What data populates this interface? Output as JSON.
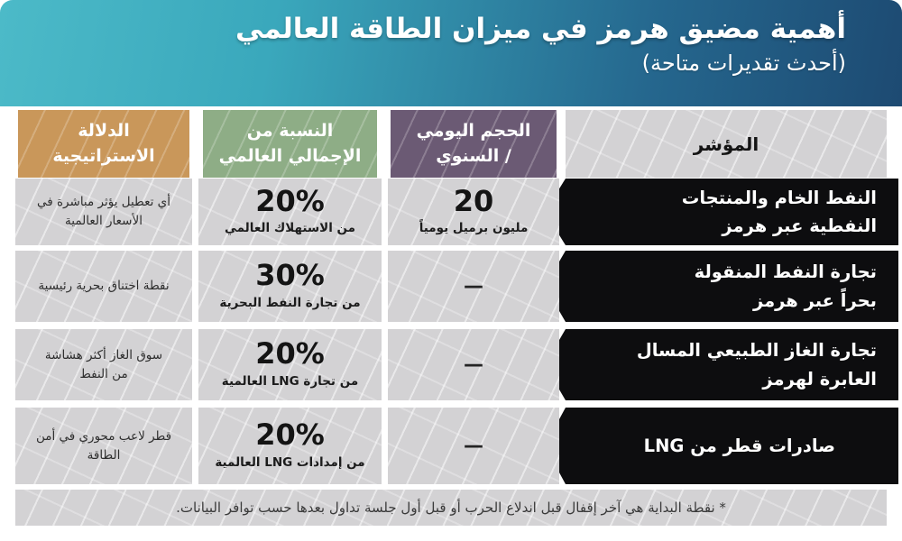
{
  "header": {
    "title": "أهمية مضيق هرمز في ميزان الطاقة العالمي",
    "subtitle": "(أحدث تقديرات متاحة)"
  },
  "colors": {
    "banner_teal": "#4cbac8",
    "banner_navy": "#1d4a72",
    "strategic_header": "#c9975a",
    "share_header": "#8ead86",
    "volume_header": "#6b5a74",
    "indicator_arrow": "#0d0d0f",
    "cell_gray": "#d3d2d4"
  },
  "table": {
    "columns": {
      "indicator": {
        "label": "المؤشر"
      },
      "volume": {
        "label": "الحجم اليومي\n/ السنوي"
      },
      "share": {
        "label": "النسبة من\nالإجمالي العالمي"
      },
      "strategic": {
        "label": "الدلالة\nالاستراتيجية"
      }
    },
    "rows": [
      {
        "indicator": "النفط الخام والمنتجات\nالنفطية  عبر هرمز",
        "volume_value": "20",
        "volume_unit": "مليون برميل يومياً",
        "share_value": "20%",
        "share_unit": "من الاستهلاك العالمي",
        "strategic": "أي تعطيل يؤثر مباشرة في\nالأسعار العالمية"
      },
      {
        "indicator": "تجارة النفط المنقولة\nبحراً عبر هرمز",
        "volume_value": "—",
        "volume_unit": "",
        "share_value": "30%",
        "share_unit": "من تجارة النفط البحرية",
        "strategic": "نقطة اختناق بحرية رئيسية"
      },
      {
        "indicator": "تجارة الغاز الطبيعي المسال\nالعابرة لهرمز",
        "volume_value": "—",
        "volume_unit": "",
        "share_value": "20%",
        "share_unit": "من تجارة LNG العالمية",
        "strategic": "سوق الغاز أكثر هشاشة\nمن النفط"
      },
      {
        "indicator": "صادرات قطر من LNG",
        "volume_value": "—",
        "volume_unit": "",
        "share_value": "20%",
        "share_unit": "من إمدادات LNG العالمية",
        "strategic": "قطر لاعب محوري في أمن\nالطاقة"
      }
    ]
  },
  "footnote": "* نقطة البداية هي آخر إقفال قبل اندلاع الحرب أو قبل أول جلسة تداول بعدها حسب توافر البيانات.",
  "chart_data": {
    "type": "table",
    "title": "أهمية مضيق هرمز في ميزان الطاقة العالمي",
    "subtitle": "(أحدث تقديرات متاحة)",
    "columns": [
      "المؤشر",
      "الحجم اليومي / السنوي",
      "النسبة من الإجمالي العالمي",
      "الدلالة الاستراتيجية"
    ],
    "rows": [
      [
        "النفط الخام والمنتجات النفطية عبر هرمز",
        "20 مليون برميل يومياً",
        "20% من الاستهلاك العالمي",
        "أي تعطيل يؤثر مباشرة في الأسعار العالمية"
      ],
      [
        "تجارة النفط المنقولة بحراً عبر هرمز",
        "—",
        "30% من تجارة النفط البحرية",
        "نقطة اختناق بحرية رئيسية"
      ],
      [
        "تجارة الغاز الطبيعي المسال العابرة لهرمز",
        "—",
        "20% من تجارة LNG العالمية",
        "سوق الغاز أكثر هشاشة من النفط"
      ],
      [
        "صادرات قطر من LNG",
        "—",
        "20% من إمدادات LNG العالمية",
        "قطر لاعب محوري في أمن الطاقة"
      ]
    ],
    "footnote": "* نقطة البداية هي آخر إقفال قبل اندلاع الحرب أو قبل أول جلسة تداول بعدها حسب توافر البيانات."
  }
}
